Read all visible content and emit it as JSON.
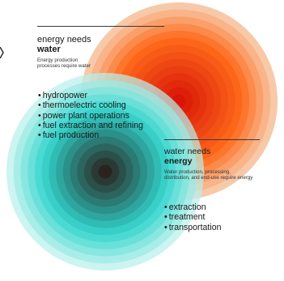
{
  "top_section": {
    "heading_light": "energy needs",
    "heading_bold": "water",
    "subtext": "Energy production processes require water",
    "items": [
      "hydropower",
      "thermoelectric cooling",
      "power plant operations",
      "fuel extraction and refining",
      "fuel production"
    ]
  },
  "bottom_section": {
    "heading_light": "water needs",
    "heading_bold": "energy",
    "subtext": "Water production, processing, distribution, and end-use require energy",
    "items": [
      "extraction",
      "treatment",
      "transportation"
    ]
  },
  "colors": {
    "energy_outer": "#f7c9a8",
    "energy_mid": "#ff6a1a",
    "energy_core": "#d81508",
    "water_outer": "#b8f0ec",
    "water_mid": "#2fd4cc",
    "water_core": "#2a1a16",
    "divider": "#3a3a3a"
  }
}
